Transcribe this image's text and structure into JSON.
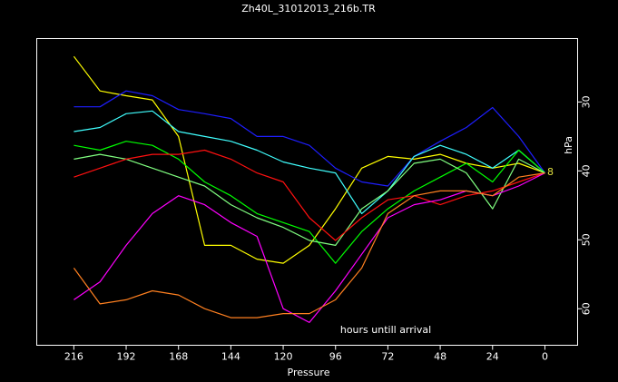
{
  "chart_data": {
    "type": "line",
    "title": "Zh40L_31012013_216b.TR",
    "x_label": "Pressure",
    "y_label": "hPa",
    "annotation": "hours untill arrival",
    "end_label": "8",
    "end_label_color": "#e0e040",
    "x": [
      216,
      204,
      192,
      180,
      168,
      156,
      144,
      132,
      120,
      108,
      96,
      84,
      72,
      60,
      48,
      36,
      24,
      12,
      0
    ],
    "xlim": [
      233,
      -15
    ],
    "xticks": [
      216,
      192,
      168,
      144,
      120,
      96,
      72,
      48,
      24,
      0
    ],
    "ylim": [
      65.3,
      20.8
    ],
    "yticks": [
      30,
      40,
      50,
      60
    ],
    "series": [
      {
        "color": "#ffff00",
        "values": [
          23.4,
          28.4,
          29.1,
          29.7,
          35.0,
          50.8,
          50.8,
          52.8,
          53.4,
          50.8,
          45.5,
          39.6,
          37.9,
          38.3,
          37.6,
          38.9,
          39.6,
          38.9,
          40.3
        ]
      },
      {
        "color": "#1e1eff",
        "values": [
          30.7,
          30.7,
          28.4,
          29.1,
          31.1,
          31.7,
          32.4,
          35.0,
          35.0,
          36.3,
          39.6,
          41.6,
          42.2,
          37.9,
          35.7,
          33.7,
          30.8,
          35.0,
          40.3
        ]
      },
      {
        "color": "#40ffff",
        "values": [
          34.3,
          33.7,
          31.7,
          31.3,
          34.3,
          35.0,
          35.7,
          37.0,
          38.7,
          39.6,
          40.3,
          46.2,
          42.9,
          37.9,
          36.3,
          37.6,
          39.6,
          37.0,
          40.3
        ]
      },
      {
        "color": "#00ff00",
        "values": [
          36.3,
          37.0,
          35.7,
          36.3,
          38.3,
          41.6,
          43.6,
          46.2,
          47.5,
          48.8,
          53.4,
          48.8,
          45.5,
          42.9,
          40.9,
          38.9,
          41.6,
          37.0,
          40.3
        ]
      },
      {
        "color": "#80ff80",
        "values": [
          38.3,
          37.6,
          38.3,
          39.6,
          40.9,
          42.2,
          44.9,
          46.8,
          48.2,
          50.1,
          50.8,
          45.5,
          42.9,
          38.9,
          38.3,
          40.3,
          45.5,
          38.3,
          40.3
        ]
      },
      {
        "color": "#ff1010",
        "values": [
          40.9,
          39.6,
          38.3,
          37.6,
          37.6,
          37.0,
          38.3,
          40.3,
          41.6,
          46.8,
          50.1,
          46.8,
          44.2,
          43.6,
          44.9,
          43.6,
          42.9,
          41.6,
          40.3
        ]
      },
      {
        "color": "#ff00ff",
        "values": [
          58.7,
          56.1,
          50.8,
          46.2,
          43.6,
          44.9,
          47.5,
          49.5,
          60.0,
          62.0,
          57.4,
          52.1,
          46.8,
          44.9,
          44.2,
          42.9,
          43.6,
          42.2,
          40.3
        ]
      },
      {
        "color": "#ff8020",
        "values": [
          54.1,
          59.3,
          58.7,
          57.4,
          58.0,
          60.0,
          61.3,
          61.3,
          60.7,
          60.7,
          58.7,
          54.1,
          46.2,
          43.6,
          42.9,
          42.9,
          43.6,
          40.9,
          40.3
        ]
      }
    ]
  }
}
